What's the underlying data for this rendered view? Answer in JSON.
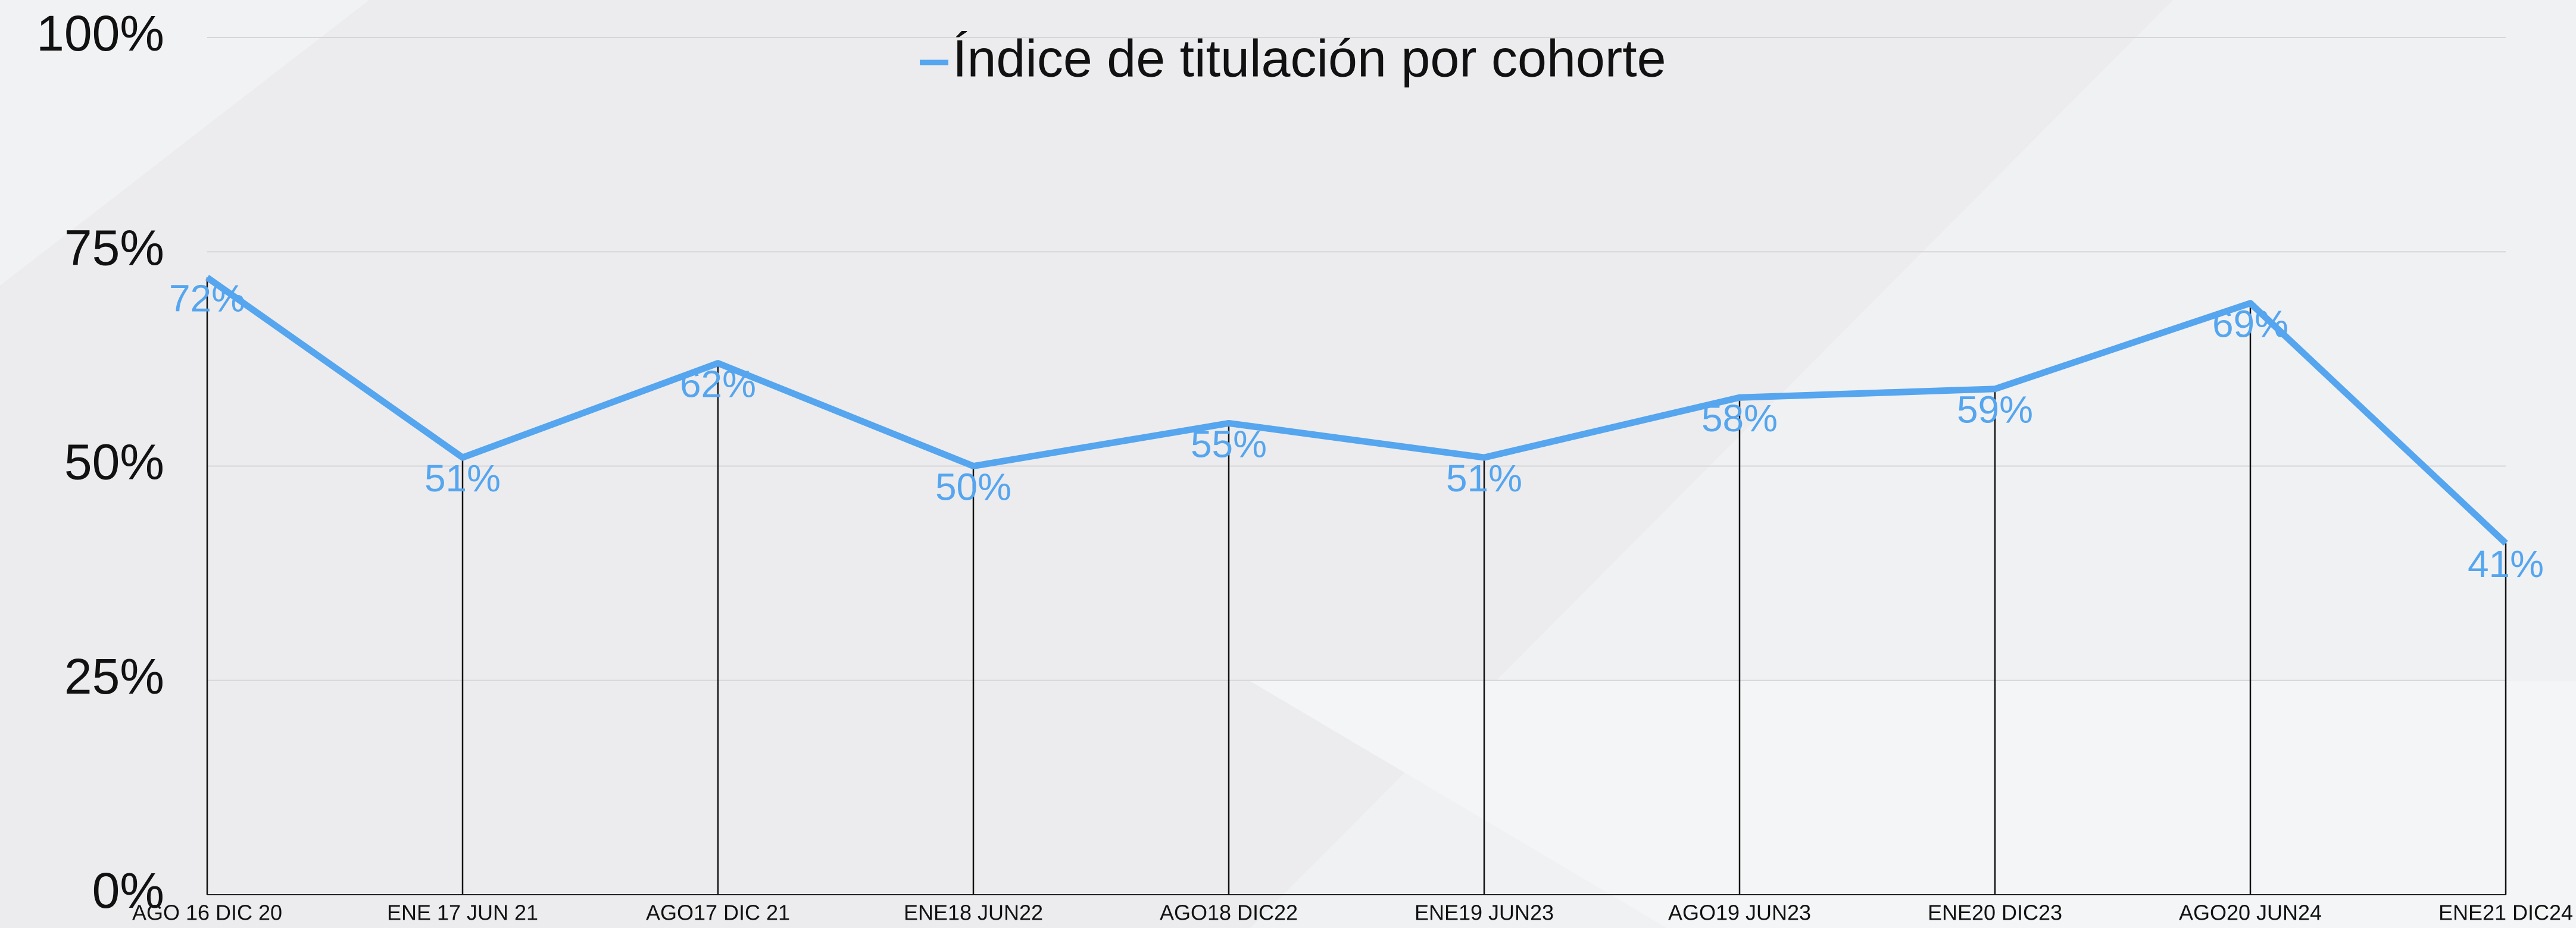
{
  "chart_data": {
    "type": "line",
    "categories": [
      "AGO 16 DIC 20",
      "ENE 17 JUN 21",
      "AGO17 DIC 21",
      "ENE18 JUN22",
      "AGO18 DIC22",
      "ENE19 JUN23",
      "AGO19 JUN23",
      "ENE20 DIC23",
      "AGO20 JUN24",
      "ENE21 DIC24"
    ],
    "series": [
      {
        "name": "Índice de titulación por cohorte",
        "color": "#55a5ef",
        "values": [
          72,
          51,
          62,
          50,
          55,
          51,
          58,
          59,
          69,
          41
        ],
        "value_labels": [
          "72%",
          "51%",
          "62%",
          "50%",
          "55%",
          "51%",
          "58%",
          "59%",
          "69%",
          "41%"
        ]
      }
    ],
    "ylim": [
      0,
      100
    ],
    "yticks": [
      {
        "value": 0,
        "label": "0%"
      },
      {
        "value": 25,
        "label": "25%"
      },
      {
        "value": 50,
        "label": "50%"
      },
      {
        "value": 75,
        "label": "75%"
      },
      {
        "value": 100,
        "label": "100%"
      }
    ],
    "grid": true,
    "drop_lines": true,
    "legend": "top"
  }
}
